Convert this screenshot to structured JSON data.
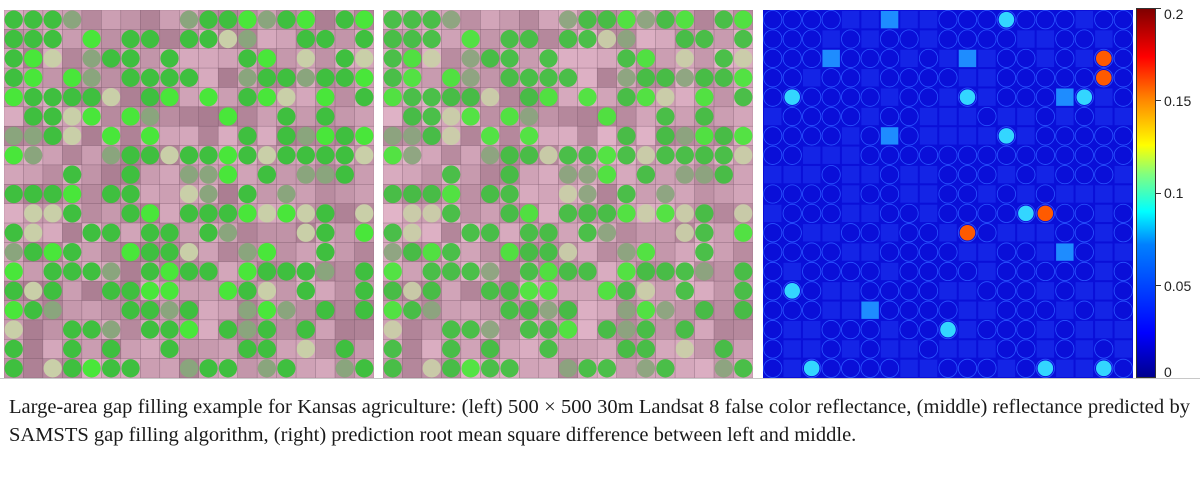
{
  "figure": {
    "panels": [
      {
        "id": "left",
        "kind": "landsat-false-color-reflectance"
      },
      {
        "id": "middle",
        "kind": "samsts-predicted-reflectance"
      },
      {
        "id": "right",
        "kind": "rms-difference-map"
      }
    ],
    "colorbar": {
      "min": 0,
      "max": 0.2,
      "ticks": [
        {
          "value": 0.2,
          "label": "0.2"
        },
        {
          "value": 0.15,
          "label": "0.15"
        },
        {
          "value": 0.1,
          "label": "0.1"
        },
        {
          "value": 0.05,
          "label": "0.05"
        },
        {
          "value": 0,
          "label": "0"
        }
      ],
      "colormap": [
        "#00008f",
        "#0000ff",
        "#0080ff",
        "#00ffff",
        "#80ff80",
        "#ffff00",
        "#ff8000",
        "#ff0000",
        "#800000"
      ]
    },
    "colors": {
      "field_pink": "#b88a9c",
      "field_green": "#3fbf3f",
      "field_bright_green": "#49e63a",
      "field_pale": "#c9cfa8",
      "map_background": "#0a0fd8"
    },
    "caption": "Large-area gap filling example for Kansas agriculture: (left) 500 × 500 30m Landsat 8 false color reflectance, (middle) reflectance predicted by SAMSTS gap filling algorithm, (right) prediction root mean square difference between left and middle."
  }
}
